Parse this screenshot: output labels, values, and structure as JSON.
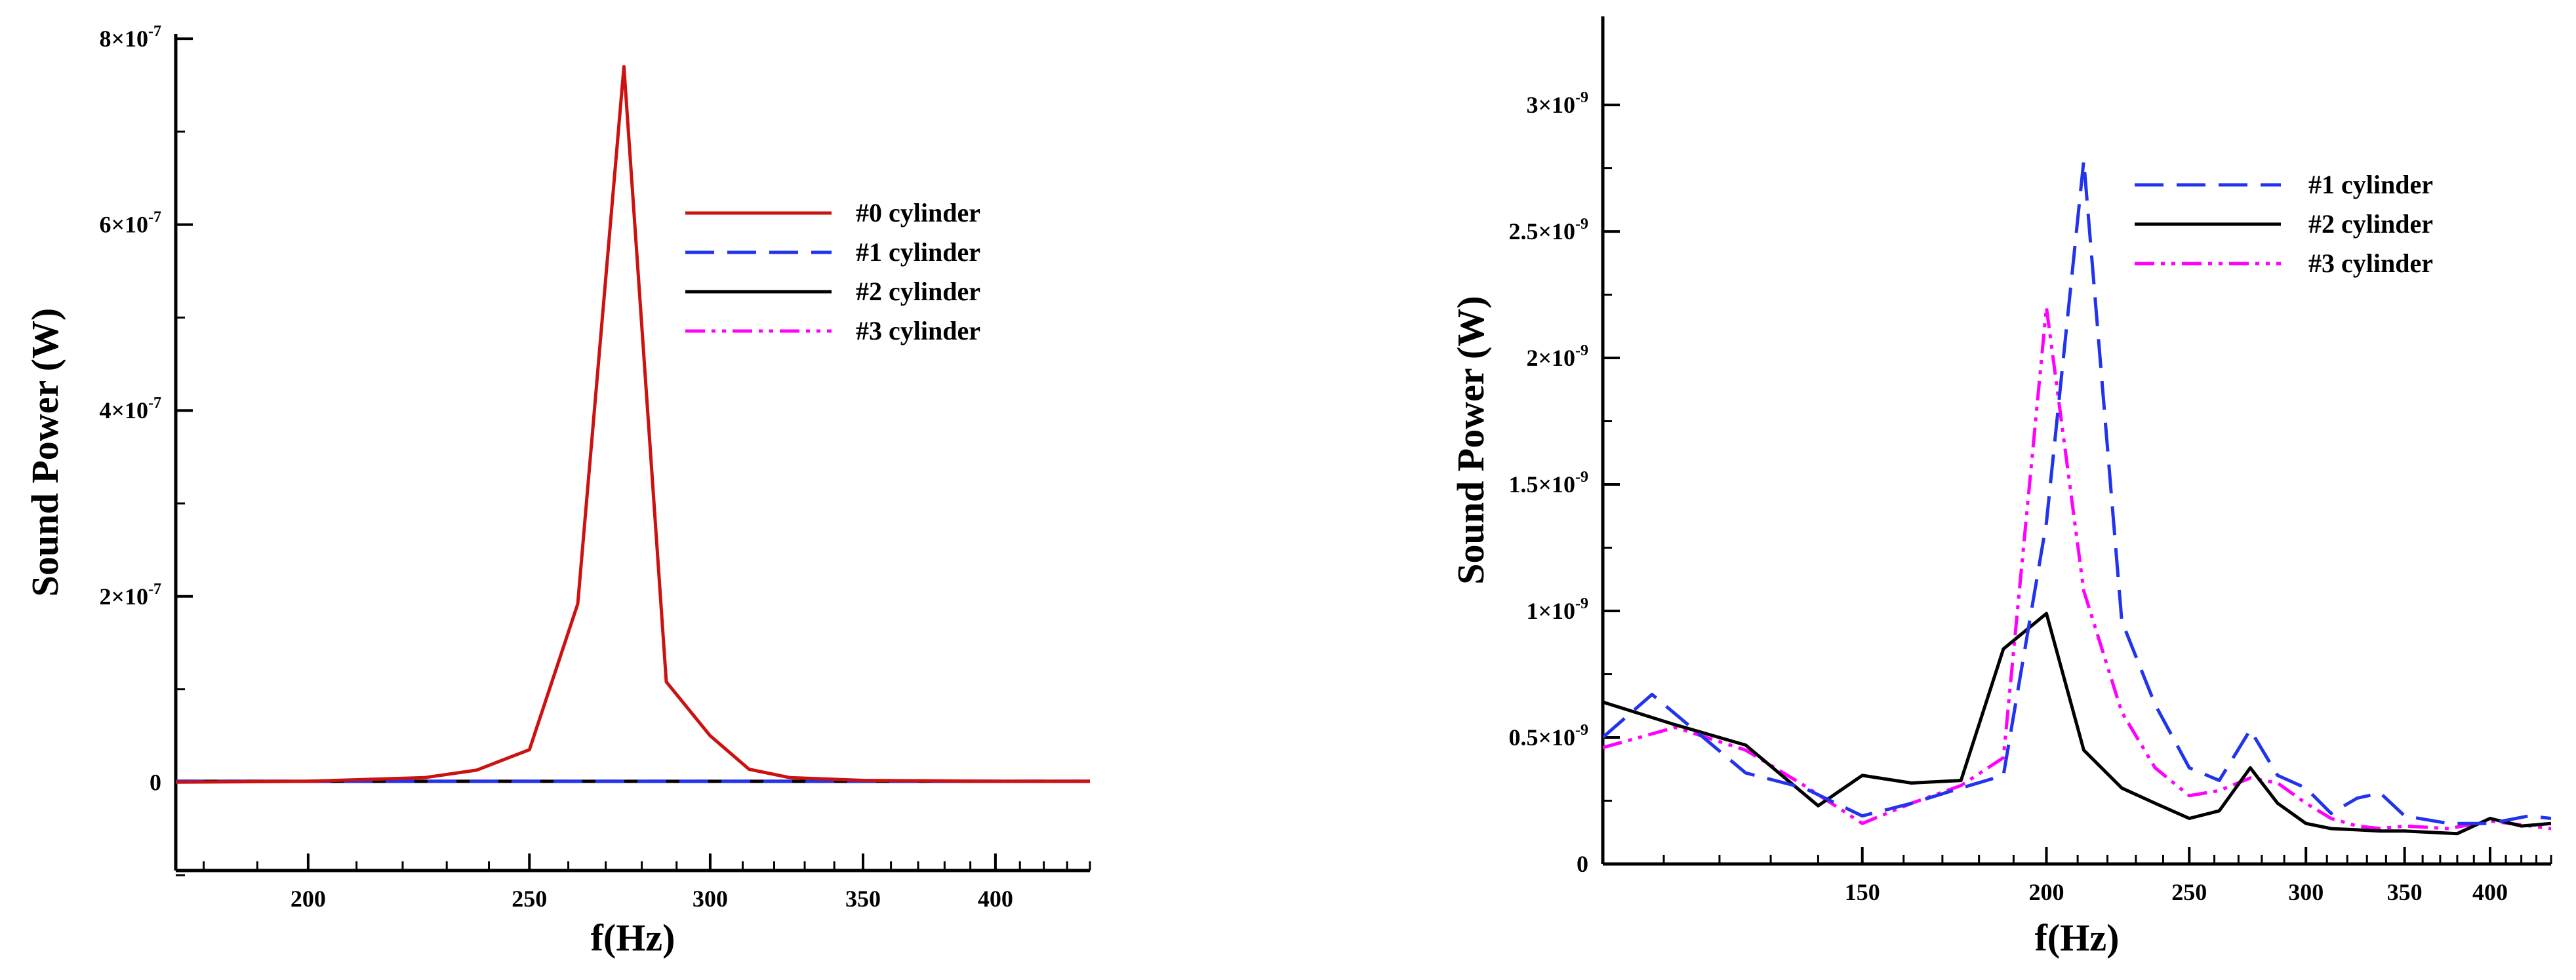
{
  "chart_data": [
    {
      "type": "line",
      "xlabel": "f(Hz)",
      "ylabel": "Sound Power (W)",
      "x_scale": "log",
      "xlim": [
        175,
        440
      ],
      "ylim": [
        -9.5e-08,
        8.05e-07
      ],
      "x_ticks": [
        {
          "value": 200,
          "label": "200"
        },
        {
          "value": 250,
          "label": "250"
        },
        {
          "value": 300,
          "label": "300"
        },
        {
          "value": 350,
          "label": "350"
        },
        {
          "value": 400,
          "label": "400"
        }
      ],
      "y_ticks": [
        {
          "value": 0,
          "mantissa": "0",
          "exponent": ""
        },
        {
          "value": 2e-07,
          "mantissa": "2×10",
          "exponent": "-7"
        },
        {
          "value": 4e-07,
          "mantissa": "4×10",
          "exponent": "-7"
        },
        {
          "value": 6e-07,
          "mantissa": "6×10",
          "exponent": "-7"
        },
        {
          "value": 8e-07,
          "mantissa": "8×10",
          "exponent": "-7"
        }
      ],
      "grid": false,
      "legend": "top-right",
      "series": [
        {
          "name": "#0 cylinder",
          "color": "#cc1111",
          "dash": "solid",
          "x": [
            175,
            200,
            225,
            237,
            250,
            262.5,
            275,
            287,
            300,
            312,
            325,
            350,
            400,
            440
          ],
          "y": [
            0,
            1e-09,
            5e-09,
            1.3e-08,
            3.5e-08,
            1.92e-07,
            7.7e-07,
            1.08e-07,
            5e-08,
            1.4e-08,
            5e-09,
            2e-09,
            1e-09,
            1e-09
          ]
        },
        {
          "name": "#1 cylinder",
          "color": "#2233ee",
          "dash": "dashed",
          "x": [
            175,
            440
          ],
          "y": [
            1e-09,
            1e-09
          ]
        },
        {
          "name": "#2 cylinder",
          "color": "#000000",
          "dash": "solid",
          "x": [
            175,
            440
          ],
          "y": [
            1e-09,
            1e-09
          ]
        },
        {
          "name": "#3 cylinder",
          "color": "#ff00ff",
          "dash": "dash-dot-dot",
          "x": [
            175,
            440
          ],
          "y": [
            1e-09,
            1e-09
          ]
        }
      ]
    },
    {
      "type": "line",
      "xlabel": "f(Hz)",
      "ylabel": "Sound Power (W)",
      "x_scale": "log",
      "xlim": [
        100,
        440
      ],
      "ylim": [
        0,
        3.35e-09
      ],
      "x_ticks": [
        {
          "value": 150,
          "label": "150"
        },
        {
          "value": 200,
          "label": "200"
        },
        {
          "value": 250,
          "label": "250"
        },
        {
          "value": 300,
          "label": "300"
        },
        {
          "value": 350,
          "label": "350"
        },
        {
          "value": 400,
          "label": "400"
        }
      ],
      "y_ticks": [
        {
          "value": 0,
          "mantissa": "0",
          "exponent": ""
        },
        {
          "value": 5e-10,
          "mantissa": "0.5×10",
          "exponent": "-9"
        },
        {
          "value": 1e-09,
          "mantissa": "1×10",
          "exponent": "-9"
        },
        {
          "value": 1.5e-09,
          "mantissa": "1.5×10",
          "exponent": "-9"
        },
        {
          "value": 2e-09,
          "mantissa": "2×10",
          "exponent": "-9"
        },
        {
          "value": 2.5e-09,
          "mantissa": "2.5×10",
          "exponent": "-9"
        },
        {
          "value": 3e-09,
          "mantissa": "3×10",
          "exponent": "-9"
        }
      ],
      "grid": false,
      "legend": "top-right",
      "series": [
        {
          "name": "#1 cylinder",
          "color": "#2233ee",
          "dash": "dashed",
          "x": [
            100,
            108,
            125,
            137,
            150,
            162,
            175,
            187,
            200,
            212,
            225,
            237,
            250,
            262,
            275,
            287,
            300,
            312,
            325,
            337,
            350,
            375,
            400,
            425,
            440
          ],
          "y": [
            5e-10,
            6.7e-10,
            3.6e-10,
            3e-10,
            1.9e-10,
            2.4e-10,
            3e-10,
            3.5e-10,
            1.35e-09,
            2.78e-09,
            9.6e-10,
            6.3e-10,
            3.8e-10,
            3.3e-10,
            5.3e-10,
            3.5e-10,
            3e-10,
            2e-10,
            2.6e-10,
            2.8e-10,
            1.9e-10,
            1.6e-10,
            1.6e-10,
            1.9e-10,
            1.8e-10
          ]
        },
        {
          "name": "#2 cylinder",
          "color": "#000000",
          "dash": "solid",
          "x": [
            100,
            112,
            125,
            140,
            150,
            162,
            175,
            187,
            200,
            212,
            225,
            237,
            250,
            262,
            275,
            287,
            300,
            312,
            325,
            337,
            350,
            365,
            380,
            400,
            420,
            440
          ],
          "y": [
            6.4e-10,
            5.5e-10,
            4.7e-10,
            2.3e-10,
            3.5e-10,
            3.2e-10,
            3.3e-10,
            8.5e-10,
            9.9e-10,
            4.5e-10,
            3e-10,
            2.4e-10,
            1.8e-10,
            2.1e-10,
            3.8e-10,
            2.4e-10,
            1.6e-10,
            1.4e-10,
            1.35e-10,
            1.3e-10,
            1.3e-10,
            1.25e-10,
            1.2e-10,
            1.8e-10,
            1.5e-10,
            1.6e-10
          ]
        },
        {
          "name": "#3 cylinder",
          "color": "#ff00ff",
          "dash": "dash-dot-dot",
          "x": [
            100,
            112,
            125,
            137,
            150,
            162,
            175,
            187,
            200,
            212,
            225,
            237,
            250,
            262,
            275,
            287,
            300,
            312,
            325,
            337,
            350,
            375,
            400,
            440
          ],
          "y": [
            4.6e-10,
            5.4e-10,
            4.5e-10,
            3.1e-10,
            1.6e-10,
            2.4e-10,
            3.1e-10,
            4.2e-10,
            2.2e-09,
            1.08e-09,
            6e-10,
            3.8e-10,
            2.7e-10,
            2.9e-10,
            3.4e-10,
            3.2e-10,
            2.4e-10,
            1.8e-10,
            1.5e-10,
            1.4e-10,
            1.5e-10,
            1.4e-10,
            1.7e-10,
            1.4e-10
          ]
        }
      ]
    }
  ]
}
